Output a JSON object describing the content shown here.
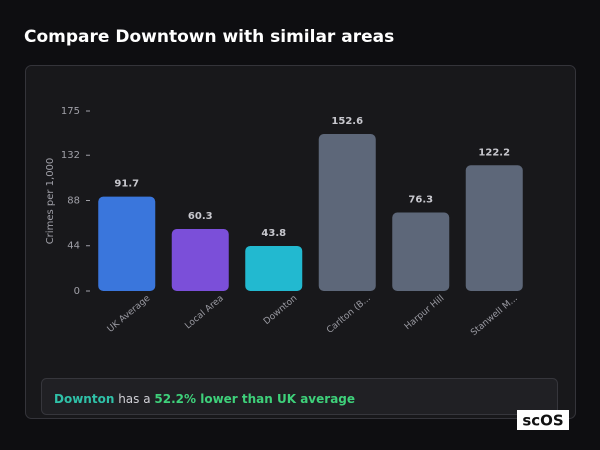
{
  "header": {
    "title": "Compare Downtown with similar areas"
  },
  "chart_data": {
    "type": "bar",
    "y_axis_label": "Crimes per 1,000",
    "categories": [
      "UK Average",
      "Local Area",
      "Downton",
      "Carlton (B...",
      "Harpur Hill",
      "Stanwell M..."
    ],
    "values": [
      91.7,
      60.3,
      43.8,
      152.6,
      76.3,
      122.2
    ],
    "colors": [
      "#3a76dc",
      "#7b4fd9",
      "#22b9d0",
      "#5d6779",
      "#5d6779",
      "#5d6779"
    ],
    "ylim": [
      0,
      175
    ],
    "yticks": [
      0,
      44,
      88,
      132,
      175
    ],
    "grid": false
  },
  "summary": {
    "area": "Downton",
    "text": "has a",
    "comparison": "52.2% lower than UK average"
  },
  "watermark": "scOS"
}
